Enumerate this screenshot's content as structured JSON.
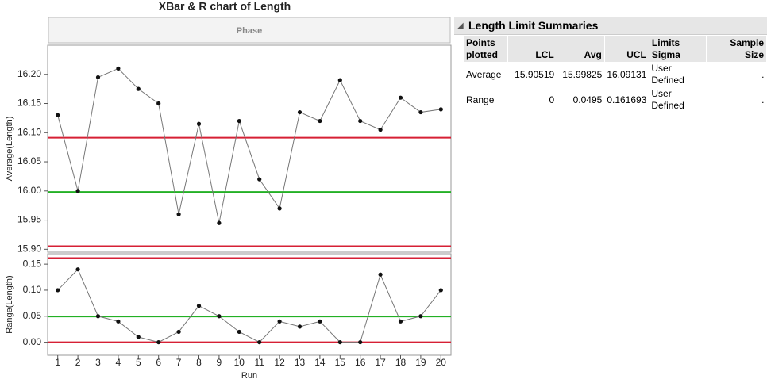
{
  "title": "XBar & R chart of Length",
  "phase_label": "Phase",
  "chart_data": [
    {
      "type": "line",
      "y_label": "Average(Length)",
      "x": [
        1,
        2,
        3,
        4,
        5,
        6,
        7,
        8,
        9,
        10,
        11,
        12,
        13,
        14,
        15,
        16,
        17,
        18,
        19,
        20
      ],
      "values": [
        16.13,
        16.0,
        16.195,
        16.21,
        16.175,
        16.15,
        15.96,
        16.115,
        15.945,
        16.12,
        16.02,
        15.97,
        16.135,
        16.12,
        16.19,
        16.12,
        16.105,
        16.16,
        16.135,
        16.14
      ],
      "color": "#777777",
      "xlim": [
        0.5,
        20.5
      ],
      "ylim": [
        15.895,
        16.25
      ],
      "yticks": [
        {
          "value": 15.9,
          "label": "15.90"
        },
        15.95,
        {
          "value": 16.0,
          "label": "16.00"
        },
        16.05,
        {
          "value": 16.1,
          "label": "16.10"
        },
        16.15,
        {
          "value": 16.2,
          "label": "16.20"
        }
      ]
    },
    {
      "type": "line",
      "y_label": "Range(Length)",
      "x_label": "Run",
      "x": [
        1,
        2,
        3,
        4,
        5,
        6,
        7,
        8,
        9,
        10,
        11,
        12,
        13,
        14,
        15,
        16,
        17,
        18,
        19,
        20
      ],
      "values": [
        0.1,
        0.14,
        0.05,
        0.04,
        0.01,
        0,
        0.02,
        0.07,
        0.05,
        0.02,
        0,
        0.04,
        0.03,
        0.04,
        0,
        0,
        0.13,
        0.04,
        0.05,
        0.1
      ],
      "color": "#777777",
      "xlim": [
        0.5,
        20.5
      ],
      "ylim": [
        -0.025,
        0.17
      ],
      "xticks": [
        1,
        2,
        3,
        4,
        5,
        6,
        7,
        8,
        9,
        10,
        11,
        12,
        13,
        14,
        15,
        16,
        17,
        18,
        19,
        20
      ],
      "yticks": [
        {
          "value": 0,
          "label": "0.00"
        },
        0.05,
        {
          "value": 0.1,
          "label": "0.10"
        },
        0.15
      ]
    }
  ],
  "summary": {
    "title": "Length Limit Summaries",
    "columns": [
      "Points plotted",
      "LCL",
      "Avg",
      "UCL",
      "Limits Sigma",
      "Sample Size"
    ],
    "rows": [
      [
        "Average",
        15.90519,
        15.99825,
        16.09131,
        "User Defined",
        "."
      ],
      [
        "Range",
        0,
        0.0495,
        0.161693,
        "User Defined",
        "."
      ]
    ]
  }
}
